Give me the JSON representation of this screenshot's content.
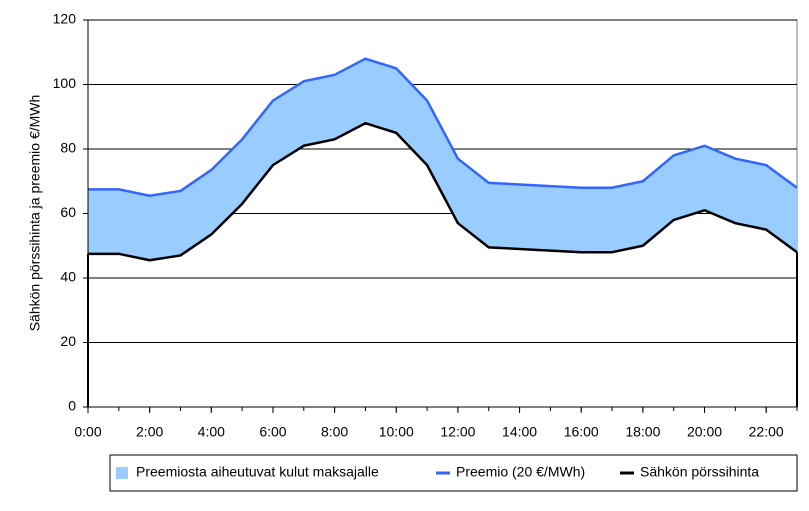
{
  "chart_data": {
    "type": "stacked-area-line",
    "y_label": "Sähkön pörssihinta ja preemio €/MWh",
    "x": [
      0,
      1,
      2,
      3,
      4,
      5,
      6,
      7,
      8,
      9,
      10,
      11,
      12,
      13,
      14,
      15,
      16,
      17,
      18,
      19,
      20,
      21,
      22,
      23
    ],
    "xlim": [
      0,
      23
    ],
    "xticks": [
      {
        "value": 0,
        "label": "0:00"
      },
      {
        "value": 2,
        "label": "2:00"
      },
      {
        "value": 4,
        "label": "4:00"
      },
      {
        "value": 6,
        "label": "6:00"
      },
      {
        "value": 8,
        "label": "8:00"
      },
      {
        "value": 10,
        "label": "10:00"
      },
      {
        "value": 12,
        "label": "12:00"
      },
      {
        "value": 14,
        "label": "14:00"
      },
      {
        "value": 16,
        "label": "16:00"
      },
      {
        "value": 18,
        "label": "18:00"
      },
      {
        "value": 20,
        "label": "20:00"
      },
      {
        "value": 22,
        "label": "22:00"
      }
    ],
    "ylim": [
      0,
      120
    ],
    "yticks": [
      0,
      20,
      40,
      60,
      80,
      100,
      120
    ],
    "grid": true,
    "legend": "bottom",
    "series": [
      {
        "name": "Preemiosta aiheutuvat kulut maksajalle",
        "kind": "area",
        "color": "#99ccff",
        "stacked_on": 2,
        "values": [
          20,
          20,
          20,
          20,
          20,
          20,
          20,
          20,
          20,
          20,
          20,
          20,
          20,
          20,
          20,
          20,
          20,
          20,
          20,
          20,
          20,
          20,
          20,
          20
        ]
      },
      {
        "name": "Preemio (20 €/MWh)",
        "kind": "line",
        "color": "#3366ff",
        "values": [
          67.5,
          67.5,
          65.5,
          67,
          73.5,
          83,
          95,
          101,
          103,
          108,
          105,
          95,
          77,
          69.5,
          69,
          68.5,
          68,
          68,
          70,
          78,
          81,
          77,
          75,
          68
        ]
      },
      {
        "name": "Sähkön pörssihinta",
        "kind": "line",
        "color": "#000000",
        "values": [
          47.5,
          47.5,
          45.5,
          47,
          53.5,
          63,
          75,
          81,
          83,
          88,
          85,
          75,
          57,
          49.5,
          49,
          48.5,
          48,
          48,
          50,
          58,
          61,
          57,
          55,
          48
        ]
      }
    ]
  }
}
